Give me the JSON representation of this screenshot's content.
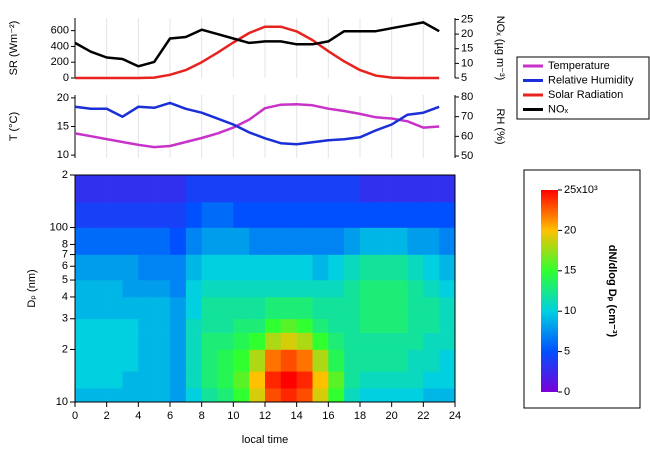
{
  "chart_data": [
    {
      "type": "line",
      "ylabel": "SR (Wm⁻²)",
      "y2label": "NOₓ (µg m⁻³)",
      "x": [
        0,
        1,
        2,
        3,
        4,
        5,
        6,
        7,
        8,
        9,
        10,
        11,
        12,
        13,
        14,
        15,
        16,
        17,
        18,
        19,
        20,
        21,
        22,
        23
      ],
      "series": [
        {
          "name": "Solar Radiation",
          "color": "#e8231f",
          "values": [
            0,
            0,
            0,
            0,
            0,
            5,
            40,
            100,
            200,
            320,
            450,
            570,
            650,
            650,
            590,
            480,
            340,
            210,
            100,
            30,
            5,
            0,
            0,
            0
          ]
        },
        {
          "name": "NOₓ",
          "color": "#000000",
          "axis": "y2",
          "values": [
            17,
            14,
            12,
            11.5,
            9,
            10.5,
            18.5,
            19,
            21.5,
            20,
            18.5,
            17,
            17.5,
            17.5,
            16.5,
            16.5,
            17.5,
            21,
            21,
            21,
            22,
            23,
            24,
            21
          ]
        }
      ],
      "ylim": [
        0,
        760
      ],
      "yticks": [
        0,
        200,
        400,
        600
      ],
      "y2lim": [
        5,
        25.5
      ],
      "y2ticks": [
        5,
        10,
        15,
        20,
        25
      ],
      "grid": true
    },
    {
      "type": "line",
      "ylabel": "T (°C)",
      "y2label": "RH (%)",
      "x": [
        0,
        1,
        2,
        3,
        4,
        5,
        6,
        7,
        8,
        9,
        10,
        11,
        12,
        13,
        14,
        15,
        16,
        17,
        18,
        19,
        20,
        21,
        22,
        23
      ],
      "series": [
        {
          "name": "Temperature",
          "color": "#c832c8",
          "values": [
            13.8,
            13.3,
            12.8,
            12.3,
            11.8,
            11.4,
            11.6,
            12.3,
            13,
            13.8,
            14.8,
            16.2,
            18.2,
            18.8,
            18.9,
            18.7,
            18.1,
            17.7,
            17.2,
            16.6,
            16.4,
            15.9,
            14.8,
            15
          ]
        },
        {
          "name": "Relative Humidity",
          "color": "#1a2fd8",
          "axis": "y2",
          "values": [
            75,
            74,
            74,
            70,
            75,
            74.5,
            77,
            74,
            72,
            69,
            66,
            62,
            59,
            56.5,
            56,
            57,
            58,
            58.5,
            59.5,
            63,
            66,
            71,
            72,
            75
          ]
        }
      ],
      "ylim": [
        9.5,
        20.5
      ],
      "yticks": [
        10,
        15,
        20
      ],
      "y2lim": [
        49,
        81
      ],
      "y2ticks": [
        50,
        60,
        70,
        80
      ],
      "grid": true
    },
    {
      "type": "heatmap",
      "ylabel": "Dₚ (nm)",
      "xlabel": "local time",
      "zlabel": "dN/dlog Dₚ (cm⁻³)",
      "xlim": [
        0,
        24
      ],
      "xticks": [
        0,
        2,
        4,
        6,
        8,
        10,
        12,
        14,
        16,
        18,
        20,
        22,
        24
      ],
      "ylim": [
        10,
        200
      ],
      "log": true,
      "yticks": [
        10,
        {
          "value": 20,
          "label": "2"
        },
        {
          "value": 30,
          "label": "3"
        },
        {
          "value": 40,
          "label": "4"
        },
        {
          "value": 50,
          "label": "5"
        },
        {
          "value": 60,
          "label": "6"
        },
        {
          "value": 70,
          "label": "7"
        },
        {
          "value": 80,
          "label": "8"
        },
        100,
        {
          "value": 200,
          "label": "2"
        }
      ],
      "x_bins": [
        0,
        1,
        2,
        3,
        4,
        5,
        6,
        7,
        8,
        9,
        10,
        11,
        12,
        13,
        14,
        15,
        16,
        17,
        18,
        19,
        20,
        21,
        22,
        23,
        24
      ],
      "y_bins": [
        10,
        12,
        15,
        20,
        25,
        30,
        40,
        50,
        70,
        100,
        140,
        200
      ],
      "z": [
        [
          9,
          9,
          9,
          9,
          9,
          9,
          8,
          10,
          12,
          13,
          15,
          19,
          23,
          24,
          23,
          19,
          15,
          11,
          10,
          10,
          10,
          10,
          9,
          9
        ],
        [
          10,
          10,
          10,
          9,
          9,
          9,
          8,
          11,
          13,
          14,
          16,
          20,
          24,
          25,
          24,
          20,
          16,
          12,
          11,
          11,
          11,
          11,
          10,
          10
        ],
        [
          10,
          10,
          10,
          10,
          9,
          9,
          8,
          11,
          13,
          14,
          15,
          18,
          22,
          23,
          22,
          18,
          14,
          12,
          12,
          12,
          12,
          11,
          11,
          10
        ],
        [
          10,
          10,
          10,
          10,
          9,
          9,
          8,
          11,
          13,
          13,
          14,
          15,
          18,
          19,
          18,
          15,
          13,
          12,
          12,
          12,
          12,
          12,
          11,
          11
        ],
        [
          10,
          10,
          10,
          10,
          9,
          9,
          8,
          11,
          12,
          12,
          13,
          13,
          15,
          16,
          15,
          13,
          12,
          12,
          13,
          13,
          13,
          12,
          12,
          11
        ],
        [
          9,
          9,
          9,
          9,
          9,
          9,
          8,
          10,
          12,
          12,
          12,
          12,
          13,
          13,
          13,
          12,
          12,
          12,
          13,
          13,
          13,
          12,
          12,
          11
        ],
        [
          9,
          9,
          9,
          8,
          8,
          8,
          7,
          10,
          11,
          11,
          11,
          11,
          11,
          11,
          11,
          11,
          11,
          12,
          13,
          13,
          13,
          12,
          11,
          10
        ],
        [
          8,
          8,
          8,
          8,
          7,
          7,
          7,
          9,
          10,
          10,
          10,
          10,
          10,
          10,
          10,
          9,
          10,
          11,
          12,
          12,
          12,
          11,
          10,
          9
        ],
        [
          6,
          6,
          6,
          6,
          6,
          6,
          5,
          7,
          8,
          8,
          8,
          7,
          7,
          7,
          7,
          7,
          7,
          8,
          9,
          9,
          9,
          8,
          8,
          7
        ],
        [
          4,
          4,
          4,
          4,
          4,
          4,
          4,
          5,
          6,
          6,
          5,
          5,
          5,
          5,
          5,
          5,
          5,
          5,
          5,
          5,
          5,
          5,
          5,
          5
        ],
        [
          3,
          3,
          3,
          3,
          3,
          3,
          3,
          4,
          4,
          4,
          4,
          4,
          4,
          4,
          4,
          4,
          4,
          4,
          3,
          3,
          3,
          3,
          3,
          3
        ]
      ],
      "zlim": [
        0,
        25
      ],
      "zticks": [
        0,
        5,
        10,
        15,
        20,
        {
          "value": 25,
          "label": "25x10³"
        }
      ],
      "colormap": [
        "#7a00d8",
        "#0050ff",
        "#00d0e0",
        "#30ff30",
        "#ffc000",
        "#ff0000"
      ]
    }
  ]
}
